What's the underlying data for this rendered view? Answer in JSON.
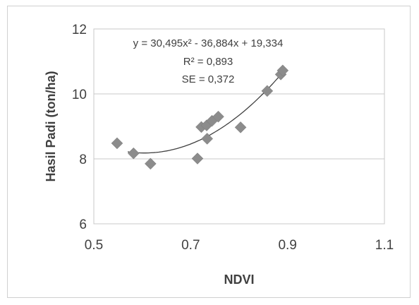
{
  "chart_data": {
    "type": "scatter",
    "xlabel": "NDVI",
    "ylabel": "Hasil Padi (ton/ha)",
    "xlim": [
      0.5,
      1.1
    ],
    "ylim": [
      6,
      12
    ],
    "x_ticks": [
      "0.5",
      "0.7",
      "0.9",
      "1.1"
    ],
    "y_ticks": [
      "6",
      "8",
      "10",
      "12"
    ],
    "grid": "horizontal",
    "series": [
      {
        "marker": "diamond",
        "color": "#8c8c8c",
        "points": [
          {
            "x": 0.548,
            "y": 8.48
          },
          {
            "x": 0.582,
            "y": 8.17
          },
          {
            "x": 0.617,
            "y": 7.85
          },
          {
            "x": 0.714,
            "y": 8.01
          },
          {
            "x": 0.722,
            "y": 8.98
          },
          {
            "x": 0.733,
            "y": 9.03
          },
          {
            "x": 0.734,
            "y": 8.62
          },
          {
            "x": 0.744,
            "y": 9.17
          },
          {
            "x": 0.757,
            "y": 9.3
          },
          {
            "x": 0.803,
            "y": 8.97
          },
          {
            "x": 0.858,
            "y": 10.09
          },
          {
            "x": 0.886,
            "y": 10.6
          },
          {
            "x": 0.89,
            "y": 10.72
          }
        ]
      }
    ],
    "trendline": {
      "type": "polynomial",
      "coefficients": [
        30.495,
        -36.884,
        19.334
      ],
      "x_range": [
        0.57,
        0.89
      ],
      "color": "#404040"
    },
    "annotations": [
      "y = 30,495x² - 36,884x + 19,334",
      "R² = 0,893",
      "SE = 0,372"
    ]
  }
}
